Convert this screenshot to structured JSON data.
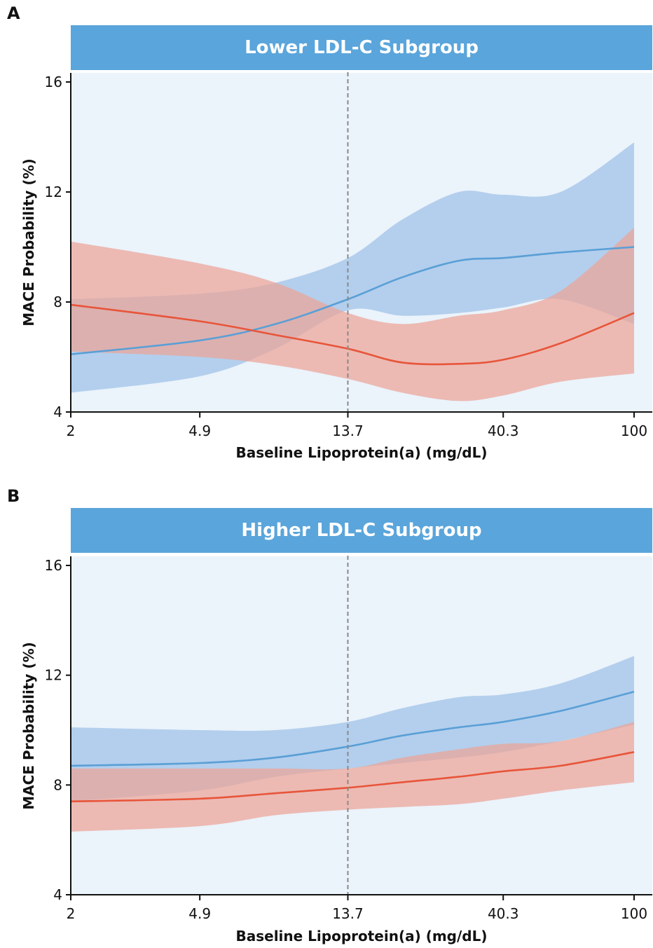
{
  "chart_data": [
    {
      "type": "line",
      "panel_label": "A",
      "title": "Lower LDL-C Subgroup",
      "xlabel": "Baseline Lipoprotein(a) (mg/dL)",
      "ylabel": "MACE Probability (%)",
      "x_scale": "log",
      "x_ticks": [
        "2",
        "4.9",
        "13.7",
        "40.3",
        "100"
      ],
      "y_ticks": [
        "4",
        "8",
        "12",
        "16"
      ],
      "xlim": [
        2,
        100
      ],
      "ylim": [
        4,
        16
      ],
      "reference_line_x": 13.7,
      "x": [
        2,
        4.9,
        8.3,
        13.7,
        20,
        29.6,
        40.3,
        60,
        100
      ],
      "series": [
        {
          "color": "#5a9fd6",
          "band_color": "#a9c8ea",
          "values": [
            6.1,
            6.6,
            7.2,
            8.1,
            8.9,
            9.5,
            9.6,
            9.8,
            10.0
          ],
          "lower": [
            4.7,
            5.3,
            6.3,
            7.7,
            7.5,
            7.6,
            7.8,
            8.1,
            7.2
          ],
          "upper": [
            8.1,
            8.3,
            8.7,
            9.6,
            11.0,
            12.0,
            11.9,
            12.0,
            13.8
          ]
        },
        {
          "color": "#e8553a",
          "band_color": "#eba497",
          "values": [
            7.9,
            7.3,
            6.8,
            6.3,
            5.8,
            5.75,
            5.9,
            6.5,
            7.6
          ],
          "lower": [
            6.2,
            6.0,
            5.7,
            5.2,
            4.7,
            4.4,
            4.6,
            5.1,
            5.4
          ],
          "upper": [
            10.2,
            9.4,
            8.7,
            7.6,
            7.2,
            7.5,
            7.7,
            8.4,
            10.7
          ]
        }
      ]
    },
    {
      "type": "line",
      "panel_label": "B",
      "title": "Higher LDL-C Subgroup",
      "xlabel": "Baseline Lipoprotein(a) (mg/dL)",
      "ylabel": "MACE Probability (%)",
      "x_scale": "log",
      "x_ticks": [
        "2",
        "4.9",
        "13.7",
        "40.3",
        "100"
      ],
      "y_ticks": [
        "4",
        "8",
        "12",
        "16"
      ],
      "xlim": [
        2,
        100
      ],
      "ylim": [
        4,
        16
      ],
      "reference_line_x": 13.7,
      "x": [
        2,
        4.9,
        8.3,
        13.7,
        20,
        29.6,
        40.3,
        60,
        100
      ],
      "series": [
        {
          "color": "#5a9fd6",
          "band_color": "#a9c8ea",
          "values": [
            8.7,
            8.8,
            9.0,
            9.4,
            9.8,
            10.1,
            10.3,
            10.7,
            11.4
          ],
          "lower": [
            7.4,
            7.8,
            8.3,
            8.6,
            8.8,
            9.0,
            9.2,
            9.6,
            10.2
          ],
          "upper": [
            10.1,
            10.0,
            10.0,
            10.3,
            10.8,
            11.2,
            11.3,
            11.7,
            12.7
          ]
        },
        {
          "color": "#e8553a",
          "band_color": "#eba497",
          "values": [
            7.4,
            7.5,
            7.7,
            7.9,
            8.1,
            8.3,
            8.5,
            8.7,
            9.2
          ],
          "lower": [
            6.3,
            6.5,
            6.9,
            7.1,
            7.2,
            7.3,
            7.5,
            7.8,
            8.1
          ],
          "upper": [
            8.6,
            8.6,
            8.6,
            8.6,
            9.0,
            9.3,
            9.5,
            9.6,
            10.3
          ]
        }
      ]
    }
  ]
}
